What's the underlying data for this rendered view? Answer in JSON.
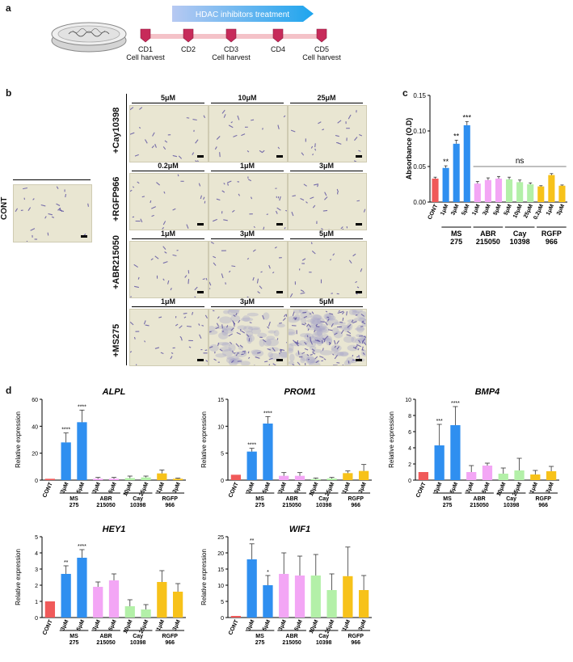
{
  "panels": {
    "a": "a",
    "b": "b",
    "c": "c",
    "d": "d"
  },
  "timeline": {
    "treatment_label": "HDAC inhibitors treatment",
    "points": [
      {
        "day": "CD1",
        "note": "Cell harvest"
      },
      {
        "day": "CD2",
        "note": ""
      },
      {
        "day": "CD3",
        "note": "Cell harvest"
      },
      {
        "day": "CD4",
        "note": ""
      },
      {
        "day": "CD5",
        "note": "Cell harvest"
      }
    ]
  },
  "micrographs": {
    "control_label": "CONT",
    "rows": [
      {
        "label": "+Cay10398",
        "concentrations": [
          "5μM",
          "10μM",
          "25μM"
        ],
        "density": [
          1,
          1,
          1
        ]
      },
      {
        "label": "+RGFP966",
        "concentrations": [
          "0.2μM",
          "1μM",
          "3μM"
        ],
        "density": [
          1,
          1.2,
          1
        ]
      },
      {
        "label": "+ABR215050",
        "concentrations": [
          "1μM",
          "3μM",
          "5μM"
        ],
        "density": [
          1,
          1,
          1
        ]
      },
      {
        "label": "+MS275",
        "concentrations": [
          "1μM",
          "3μM",
          "5μM"
        ],
        "density": [
          1.5,
          3,
          5
        ]
      }
    ]
  },
  "colors": {
    "CONT": "#f05a5a",
    "MS275": "#2f8ff0",
    "ABR": "#f3a6f5",
    "Cay": "#b3f0a8",
    "RGFP": "#f7c21a"
  },
  "group_labels": [
    {
      "key": "MS275",
      "line1": "MS",
      "line2": "275"
    },
    {
      "key": "ABR",
      "line1": "ABR",
      "line2": "215050"
    },
    {
      "key": "Cay",
      "line1": "Cay",
      "line2": "10398"
    },
    {
      "key": "RGFP",
      "line1": "RGFP",
      "line2": "966"
    }
  ],
  "chart_data": [
    {
      "type": "bar",
      "panel": "c",
      "ylabel": "Absorbance (O.D)",
      "ylim": [
        0,
        0.15
      ],
      "yticks": [
        "0.00",
        "0.05",
        "0.10",
        "0.15"
      ],
      "ns_label": "ns",
      "categories": [
        "CONT",
        "1μM",
        "3μM",
        "5μM",
        "1μM",
        "3μM",
        "5μM",
        "5μM",
        "10μM",
        "25μM",
        "0.2μM",
        "1μM",
        "3μM"
      ],
      "groups": [
        "CONT",
        "MS275",
        "MS275",
        "MS275",
        "ABR",
        "ABR",
        "ABR",
        "Cay",
        "Cay",
        "Cay",
        "RGFP",
        "RGFP",
        "RGFP"
      ],
      "values": [
        0.033,
        0.048,
        0.082,
        0.108,
        0.026,
        0.031,
        0.033,
        0.032,
        0.028,
        0.025,
        0.022,
        0.038,
        0.023
      ],
      "errors": [
        0.002,
        0.003,
        0.005,
        0.005,
        0.003,
        0.003,
        0.003,
        0.003,
        0.003,
        0.002,
        0.001,
        0.002,
        0.001
      ],
      "sig": [
        "",
        "**",
        "**",
        "***",
        "",
        "",
        "",
        "",
        "",
        "",
        "",
        "",
        ""
      ]
    },
    {
      "type": "bar",
      "panel": "d",
      "title": "ALPL",
      "ylabel": "Relative expression",
      "ylim": [
        0,
        60
      ],
      "yticks": [
        "0",
        "20",
        "40",
        "60"
      ],
      "categories": [
        "CONT",
        "3μM",
        "5μM",
        "3μM",
        "5μM",
        "10μM",
        "25μM",
        "1μM",
        "3μM"
      ],
      "groups": [
        "CONT",
        "MS275",
        "MS275",
        "ABR",
        "ABR",
        "Cay",
        "Cay",
        "RGFP",
        "RGFP"
      ],
      "values": [
        1,
        28,
        43,
        1,
        1,
        1.5,
        2,
        5,
        1
      ],
      "errors": [
        0,
        7,
        9,
        1,
        1,
        1.5,
        1,
        2.5,
        0.5
      ],
      "sig": [
        "",
        "****",
        "****",
        "",
        "",
        "",
        "",
        "",
        ""
      ]
    },
    {
      "type": "bar",
      "panel": "d",
      "title": "PROM1",
      "ylabel": "Relative expression",
      "ylim": [
        0,
        15
      ],
      "yticks": [
        "0",
        "5",
        "10",
        "15"
      ],
      "categories": [
        "CONT",
        "3μM",
        "5μM",
        "3μM",
        "5μM",
        "10μM",
        "25μM",
        "1μM",
        "3μM"
      ],
      "groups": [
        "CONT",
        "MS275",
        "MS275",
        "ABR",
        "ABR",
        "Cay",
        "Cay",
        "RGFP",
        "RGFP"
      ],
      "values": [
        1,
        5.3,
        10.5,
        0.8,
        0.8,
        0.2,
        0.3,
        1.3,
        1.7
      ],
      "errors": [
        0,
        0.6,
        1.3,
        0.6,
        0.6,
        0.2,
        0.2,
        0.4,
        1.2
      ],
      "sig": [
        "",
        "****",
        "****",
        "",
        "",
        "",
        "",
        "",
        ""
      ]
    },
    {
      "type": "bar",
      "panel": "d",
      "title": "BMP4",
      "ylabel": "Relative expression",
      "ylim": [
        0,
        10
      ],
      "yticks": [
        "0",
        "2",
        "4",
        "6",
        "8",
        "10"
      ],
      "categories": [
        "CONT",
        "3μM",
        "5μM",
        "3μM",
        "5μM",
        "10μM",
        "25μM",
        "1μM",
        "3μM"
      ],
      "groups": [
        "CONT",
        "MS275",
        "MS275",
        "ABR",
        "ABR",
        "Cay",
        "Cay",
        "RGFP",
        "RGFP"
      ],
      "values": [
        1,
        4.3,
        6.8,
        1,
        1.8,
        0.8,
        1.2,
        0.7,
        1.1
      ],
      "errors": [
        0,
        2.6,
        2.3,
        0.8,
        0.3,
        0.7,
        1.5,
        0.5,
        0.6
      ],
      "sig": [
        "",
        "***",
        "****",
        "",
        "",
        "",
        "",
        "",
        ""
      ]
    },
    {
      "type": "bar",
      "panel": "d",
      "title": "HEY1",
      "ylabel": "Relative expression",
      "ylim": [
        0,
        5
      ],
      "yticks": [
        "0",
        "1",
        "2",
        "3",
        "4",
        "5"
      ],
      "categories": [
        "CONT",
        "3μM",
        "5μM",
        "3μM",
        "5μM",
        "10μM",
        "25μM",
        "1μM",
        "3μM"
      ],
      "groups": [
        "CONT",
        "MS275",
        "MS275",
        "ABR",
        "ABR",
        "Cay",
        "Cay",
        "RGFP",
        "RGFP"
      ],
      "values": [
        1,
        2.7,
        3.7,
        1.9,
        2.3,
        0.7,
        0.5,
        2.2,
        1.6
      ],
      "errors": [
        0,
        0.5,
        0.5,
        0.3,
        0.4,
        0.4,
        0.3,
        0.7,
        0.5
      ],
      "sig": [
        "",
        "**",
        "****",
        "",
        "",
        "",
        "",
        "",
        ""
      ]
    },
    {
      "type": "bar",
      "panel": "d",
      "title": "WIF1",
      "ylabel": "Relative expression",
      "ylim": [
        0,
        25
      ],
      "yticks": [
        "0",
        "5",
        "10",
        "15",
        "20",
        "25"
      ],
      "categories": [
        "CONT",
        "3μM",
        "5μM",
        "3μM",
        "5μM",
        "10μM",
        "25μM",
        "1μM",
        "3μM"
      ],
      "groups": [
        "CONT",
        "MS275",
        "MS275",
        "ABR",
        "ABR",
        "Cay",
        "Cay",
        "RGFP",
        "RGFP"
      ],
      "values": [
        0.5,
        18,
        10,
        13.5,
        13,
        13,
        8.5,
        12.8,
        8.5
      ],
      "errors": [
        0,
        4.8,
        3,
        6.5,
        6,
        6.5,
        5,
        9,
        4.5
      ],
      "sig": [
        "",
        "**",
        "*",
        "",
        "",
        "",
        "",
        "",
        ""
      ]
    }
  ]
}
